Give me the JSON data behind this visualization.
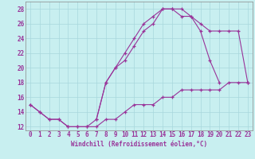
{
  "xlabel": "Windchill (Refroidissement éolien,°C)",
  "background_color": "#c8eff0",
  "grid_color": "#a8d8dc",
  "line_color": "#993399",
  "spine_color": "#888888",
  "xlim_min": -0.5,
  "xlim_max": 23.5,
  "ylim_min": 11.5,
  "ylim_max": 29.0,
  "xticks": [
    0,
    1,
    2,
    3,
    4,
    5,
    6,
    7,
    8,
    9,
    10,
    11,
    12,
    13,
    14,
    15,
    16,
    17,
    18,
    19,
    20,
    21,
    22,
    23
  ],
  "yticks": [
    12,
    14,
    16,
    18,
    20,
    22,
    24,
    26,
    28
  ],
  "line1_x": [
    0,
    1,
    2,
    3,
    4,
    5,
    6,
    7,
    8,
    9,
    10,
    11,
    12,
    13,
    14,
    15,
    16,
    17,
    18,
    19,
    20
  ],
  "line1_y": [
    15,
    14,
    13,
    13,
    12,
    12,
    12,
    13,
    18,
    20,
    22,
    24,
    26,
    27,
    28,
    28,
    28,
    27,
    25,
    21,
    18
  ],
  "line2_x": [
    7,
    8,
    9,
    10,
    11,
    12,
    13,
    14,
    15,
    16,
    17,
    18,
    19,
    20,
    21,
    22,
    23
  ],
  "line2_y": [
    13,
    18,
    20,
    21,
    23,
    25,
    26,
    28,
    28,
    27,
    27,
    26,
    25,
    25,
    25,
    25,
    18
  ],
  "line3_x": [
    0,
    1,
    2,
    3,
    4,
    5,
    6,
    7,
    8,
    9,
    10,
    11,
    12,
    13,
    14,
    15,
    16,
    17,
    18,
    19,
    20,
    21,
    22,
    23
  ],
  "line3_y": [
    15,
    14,
    13,
    13,
    12,
    12,
    12,
    12,
    13,
    13,
    14,
    15,
    15,
    15,
    16,
    16,
    17,
    17,
    17,
    17,
    17,
    18,
    18,
    18
  ],
  "tick_fontsize": 5.5,
  "xlabel_fontsize": 5.5
}
